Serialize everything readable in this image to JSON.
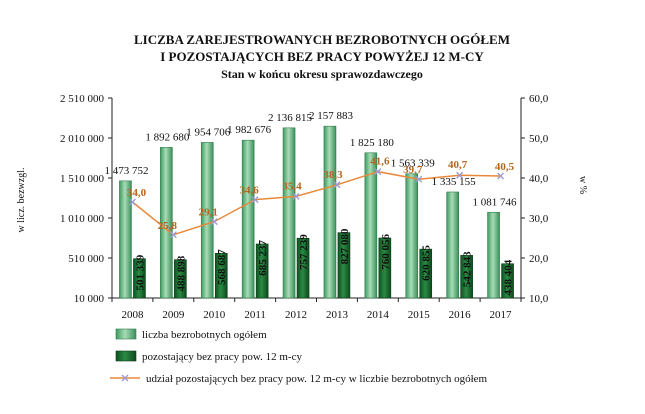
{
  "chart_data": {
    "type": "bar",
    "title_lines": [
      "LICZBA ZAREJESTROWANYCH BEZROBOTNYCH OGÓŁEM",
      "I POZOSTAJĄCYCH BEZ PRACY POWYŻEJ 12 M-CY"
    ],
    "subtitle": "Stan w końcu okresu sprawozdawczego",
    "categories": [
      "2008",
      "2009",
      "2010",
      "2011",
      "2012",
      "2013",
      "2014",
      "2015",
      "2016",
      "2017"
    ],
    "series": [
      {
        "name": "liczba bezrobotnych ogółem",
        "type": "bar",
        "axis": "left",
        "values": [
          1473752,
          1892680,
          1954706,
          1982676,
          2136815,
          2157883,
          1825180,
          1563339,
          1335155,
          1081746
        ],
        "labels": [
          "1 473 752",
          "1 892 680",
          "1 954 706",
          "1 982 676",
          "2 136 815",
          "2 157 883",
          "1 825 180",
          "1 563 339",
          "1 335 155",
          "1 081 746"
        ]
      },
      {
        "name": "pozostający bez pracy pow. 12 m-cy",
        "type": "bar",
        "axis": "left",
        "values": [
          501339,
          488898,
          568687,
          685237,
          757239,
          827080,
          760056,
          620855,
          542843,
          438404
        ],
        "labels": [
          "501 339",
          "488 898",
          "568 687",
          "685 237",
          "757 239",
          "827 080",
          "760 056",
          "620 855",
          "542 843",
          "438 404"
        ]
      },
      {
        "name": "udział pozostających bez pracy pow. 12 m-cy w liczbie bezrobotnych ogółem",
        "type": "line",
        "axis": "right",
        "values": [
          34.0,
          25.8,
          29.1,
          34.6,
          35.4,
          38.3,
          41.6,
          39.7,
          40.7,
          40.5
        ],
        "labels": [
          "34,0",
          "25,8",
          "29,1",
          "34,6",
          "35,4",
          "38,3",
          "41,6",
          "39,7",
          "40,7",
          "40,5"
        ]
      }
    ],
    "ylabel": "w licz. bezwzgl.",
    "ylim": [
      10000,
      2510000
    ],
    "y_ticks": [
      10000,
      510000,
      1010000,
      1510000,
      2010000,
      2510000
    ],
    "y_tick_labels": [
      "10 000",
      "510 000",
      "1 010 000",
      "1 510 000",
      "2 010 000",
      "2 510 000"
    ],
    "y2label": "w %",
    "y2lim": [
      10,
      60
    ],
    "y2_ticks": [
      10,
      20,
      30,
      40,
      50,
      60
    ],
    "y2_tick_labels": [
      "10,0",
      "20,0",
      "30,0",
      "40,0",
      "50,0",
      "60,0"
    ],
    "grid": false,
    "legend_position": "bottom-left",
    "colors": {
      "bar_total": "#6cc08b",
      "bar_total_edge": "#2f7d4a",
      "bar_long": "#146b2c",
      "bar_long_edge": "#0b3d18",
      "line": "#e8893a",
      "marker": "#9b9bd3",
      "line_label": "#b5651d",
      "text": "#111111"
    }
  }
}
